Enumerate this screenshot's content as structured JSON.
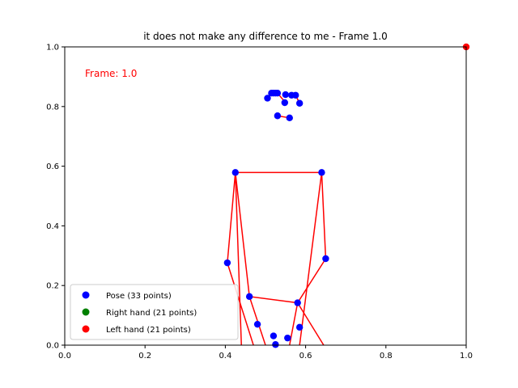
{
  "chart_data": {
    "type": "scatter",
    "title": "it does not make any difference to me - Frame 1.0",
    "annotation": "Frame: 1.0",
    "xlabel": "",
    "ylabel": "",
    "xlim": [
      0,
      1
    ],
    "ylim": [
      0,
      1
    ],
    "xticks": [
      "0.0",
      "0.2",
      "0.4",
      "0.6",
      "0.8",
      "1.0"
    ],
    "yticks": [
      "0.0",
      "0.2",
      "0.4",
      "0.6",
      "0.8",
      "1.0"
    ],
    "legend_position": "lower-left",
    "colors": {
      "pose": "#0000ff",
      "right_hand": "#008000",
      "left_hand": "#ff0000",
      "connections": "#ff0000",
      "annotation": "#ff0000"
    },
    "series": [
      {
        "name": "Pose (33 points)",
        "color": "#0000ff",
        "points": [
          [
            0.53,
            0.845
          ],
          [
            0.525,
            0.845
          ],
          [
            0.52,
            0.845
          ],
          [
            0.515,
            0.845
          ],
          [
            0.55,
            0.84
          ],
          [
            0.565,
            0.838
          ],
          [
            0.575,
            0.838
          ],
          [
            0.505,
            0.828
          ],
          [
            0.585,
            0.811
          ],
          [
            0.548,
            0.813
          ],
          [
            0.53,
            0.769
          ],
          [
            0.56,
            0.762
          ],
          [
            0.425,
            0.579
          ],
          [
            0.64,
            0.579
          ],
          [
            0.405,
            0.276
          ],
          [
            0.65,
            0.29
          ],
          [
            0.46,
            0.163
          ],
          [
            0.58,
            0.142
          ],
          [
            0.48,
            0.07
          ],
          [
            0.585,
            0.06
          ],
          [
            0.52,
            0.031
          ],
          [
            0.555,
            0.024
          ],
          [
            0.525,
            0.002
          ]
        ]
      },
      {
        "name": "Right hand (21 points)",
        "color": "#008000",
        "points": []
      },
      {
        "name": "Left hand (21 points)",
        "color": "#ff0000",
        "points": [
          [
            1.0,
            1.0
          ]
        ]
      }
    ],
    "connections": [
      [
        [
          0.505,
          0.828
        ],
        [
          0.515,
          0.845
        ],
        [
          0.52,
          0.845
        ],
        [
          0.525,
          0.845
        ],
        [
          0.53,
          0.845
        ],
        [
          0.55,
          0.813
        ]
      ],
      [
        [
          0.55,
          0.84
        ],
        [
          0.565,
          0.838
        ],
        [
          0.575,
          0.838
        ],
        [
          0.585,
          0.811
        ]
      ],
      [
        [
          0.53,
          0.769
        ],
        [
          0.56,
          0.762
        ]
      ],
      [
        [
          0.425,
          0.579
        ],
        [
          0.64,
          0.579
        ]
      ],
      [
        [
          0.425,
          0.579
        ],
        [
          0.405,
          0.276
        ],
        [
          0.47,
          0.0
        ]
      ],
      [
        [
          0.64,
          0.579
        ],
        [
          0.65,
          0.29
        ],
        [
          0.58,
          0.142
        ],
        [
          0.56,
          0.0
        ]
      ],
      [
        [
          0.425,
          0.579
        ],
        [
          0.46,
          0.163
        ],
        [
          0.58,
          0.142
        ]
      ],
      [
        [
          0.46,
          0.163
        ],
        [
          0.5,
          0.0
        ]
      ],
      [
        [
          0.58,
          0.142
        ],
        [
          0.645,
          0.0
        ]
      ],
      [
        [
          0.64,
          0.579
        ],
        [
          0.585,
          0.0
        ]
      ],
      [
        [
          0.425,
          0.579
        ],
        [
          0.44,
          0.0
        ]
      ]
    ]
  }
}
